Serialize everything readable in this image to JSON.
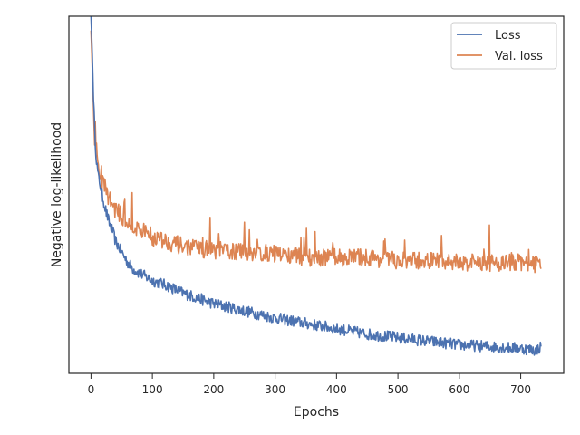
{
  "chart_data": {
    "type": "line",
    "title": "",
    "xlabel": "Epochs",
    "ylabel": "Negative log-likelihood",
    "xlim": [
      -36,
      770
    ],
    "ylim": [
      0,
      100
    ],
    "xticks": [
      0,
      100,
      200,
      300,
      400,
      500,
      600,
      700
    ],
    "y_tick_labels_shown": false,
    "grid": false,
    "legend_position": "top-right",
    "colors": {
      "Loss": "#4c72b0",
      "Val. loss": "#dd8452",
      "axes": "#262626"
    },
    "series": [
      {
        "name": "Loss",
        "x": [
          0,
          2,
          4,
          6,
          8,
          10,
          12,
          15,
          18,
          21,
          25,
          30,
          35,
          40,
          50,
          60,
          70,
          80,
          90,
          100,
          125,
          150,
          175,
          200,
          250,
          300,
          350,
          400,
          450,
          500,
          550,
          600,
          650,
          700,
          725,
          733
        ],
        "y": [
          100,
          90,
          78,
          68,
          62,
          58,
          55,
          53,
          50,
          48,
          45,
          42,
          40,
          37,
          34,
          31,
          29,
          28,
          27,
          26,
          24.5,
          22.5,
          21,
          19.5,
          17.5,
          15.5,
          14,
          12.5,
          11,
          10,
          9,
          8,
          7.5,
          7,
          6.5,
          7.5
        ]
      },
      {
        "name": "Val. loss",
        "x": [
          0,
          2,
          4,
          6,
          8,
          10,
          12,
          15,
          18,
          21,
          25,
          30,
          35,
          40,
          50,
          60,
          70,
          80,
          90,
          100,
          125,
          150,
          175,
          200,
          250,
          300,
          350,
          400,
          450,
          500,
          550,
          600,
          650,
          700,
          725,
          733
        ],
        "y": [
          96,
          86,
          74,
          66,
          62,
          59,
          57,
          55,
          54,
          53,
          51,
          49,
          47,
          46,
          44,
          42,
          41,
          40,
          39,
          38,
          37,
          35.5,
          35,
          34.5,
          34,
          33.5,
          32.5,
          32.5,
          32.5,
          31.5,
          31.5,
          31,
          31,
          31,
          30.5,
          31
        ]
      }
    ]
  }
}
